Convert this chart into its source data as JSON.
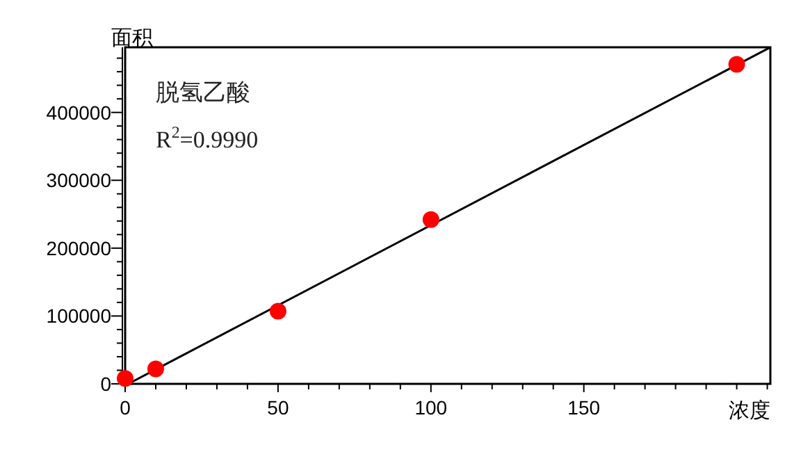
{
  "chart_data": {
    "type": "scatter",
    "xlabel": "浓度",
    "ylabel": "面积",
    "xlim": [
      0,
      211
    ],
    "ylim": [
      0,
      496000
    ],
    "xticks": [
      0,
      {
        "value": 10,
        "label": null
      },
      {
        "value": 20,
        "label": null
      },
      {
        "value": 30,
        "label": null
      },
      {
        "value": 40,
        "label": null
      },
      50,
      {
        "value": 60,
        "label": null
      },
      {
        "value": 70,
        "label": null
      },
      {
        "value": 80,
        "label": null
      },
      {
        "value": 90,
        "label": null
      },
      100,
      {
        "value": 110,
        "label": null
      },
      {
        "value": 120,
        "label": null
      },
      {
        "value": 130,
        "label": null
      },
      {
        "value": 140,
        "label": null
      },
      150,
      {
        "value": 160,
        "label": null
      },
      {
        "value": 170,
        "label": null
      },
      {
        "value": 180,
        "label": null
      },
      {
        "value": 190,
        "label": null
      },
      {
        "value": 200,
        "label": null
      },
      {
        "value": 210,
        "label": null
      }
    ],
    "yticks": [
      0,
      {
        "value": 20000,
        "label": null
      },
      {
        "value": 40000,
        "label": null
      },
      {
        "value": 60000,
        "label": null
      },
      {
        "value": 80000,
        "label": null
      },
      100000,
      {
        "value": 120000,
        "label": null
      },
      {
        "value": 140000,
        "label": null
      },
      {
        "value": 160000,
        "label": null
      },
      {
        "value": 180000,
        "label": null
      },
      200000,
      {
        "value": 220000,
        "label": null
      },
      {
        "value": 240000,
        "label": null
      },
      {
        "value": 260000,
        "label": null
      },
      {
        "value": 280000,
        "label": null
      },
      300000,
      {
        "value": 320000,
        "label": null
      },
      {
        "value": 340000,
        "label": null
      },
      {
        "value": 360000,
        "label": null
      },
      {
        "value": 380000,
        "label": null
      },
      400000,
      {
        "value": 420000,
        "label": null
      },
      {
        "value": 440000,
        "label": null
      },
      {
        "value": 460000,
        "label": null
      },
      {
        "value": 480000,
        "label": null
      }
    ],
    "series": [
      {
        "type": "line",
        "color": "#000000",
        "x": [
          1,
          211
        ],
        "values": [
          0,
          496000
        ]
      },
      {
        "color": "#ff0000",
        "marker": "circle",
        "x": [
          0,
          10,
          50,
          100,
          200
        ],
        "values": [
          8000,
          22000,
          107000,
          242000,
          471000
        ]
      }
    ],
    "grid": false,
    "annotations": [
      "脱氢乙酸",
      "R$^{2}$=0.9990"
    ]
  }
}
